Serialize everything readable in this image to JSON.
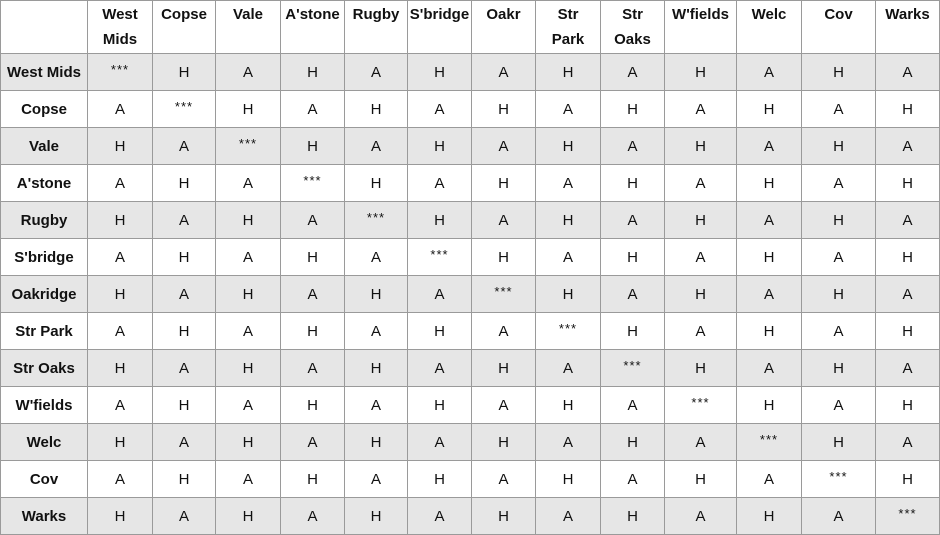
{
  "columns": [
    [
      "West",
      "Mids"
    ],
    [
      "Copse"
    ],
    [
      "Vale"
    ],
    [
      "A'stone"
    ],
    [
      "Rugby"
    ],
    [
      "S'bridge"
    ],
    [
      "Oakr"
    ],
    [
      "Str",
      "Park"
    ],
    [
      "Str",
      "Oaks"
    ],
    [
      "W'fields"
    ],
    [
      "Welc"
    ],
    [
      "Cov"
    ],
    [
      "Warks"
    ]
  ],
  "rows": [
    {
      "team": "West Mids",
      "cells": [
        "***",
        "H",
        "A",
        "H",
        "A",
        "H",
        "A",
        "H",
        "A",
        "H",
        "A",
        "H",
        "A"
      ]
    },
    {
      "team": "Copse",
      "cells": [
        "A",
        "***",
        "H",
        "A",
        "H",
        "A",
        "H",
        "A",
        "H",
        "A",
        "H",
        "A",
        "H"
      ]
    },
    {
      "team": "Vale",
      "cells": [
        "H",
        "A",
        "***",
        "H",
        "A",
        "H",
        "A",
        "H",
        "A",
        "H",
        "A",
        "H",
        "A"
      ]
    },
    {
      "team": "A'stone",
      "cells": [
        "A",
        "H",
        "A",
        "***",
        "H",
        "A",
        "H",
        "A",
        "H",
        "A",
        "H",
        "A",
        "H"
      ]
    },
    {
      "team": "Rugby",
      "cells": [
        "H",
        "A",
        "H",
        "A",
        "***",
        "H",
        "A",
        "H",
        "A",
        "H",
        "A",
        "H",
        "A"
      ]
    },
    {
      "team": "S'bridge",
      "cells": [
        "A",
        "H",
        "A",
        "H",
        "A",
        "***",
        "H",
        "A",
        "H",
        "A",
        "H",
        "A",
        "H"
      ]
    },
    {
      "team": "Oakridge",
      "cells": [
        "H",
        "A",
        "H",
        "A",
        "H",
        "A",
        "***",
        "H",
        "A",
        "H",
        "A",
        "H",
        "A"
      ]
    },
    {
      "team": "Str Park",
      "cells": [
        "A",
        "H",
        "A",
        "H",
        "A",
        "H",
        "A",
        "***",
        "H",
        "A",
        "H",
        "A",
        "H"
      ]
    },
    {
      "team": "Str Oaks",
      "cells": [
        "H",
        "A",
        "H",
        "A",
        "H",
        "A",
        "H",
        "A",
        "***",
        "H",
        "A",
        "H",
        "A"
      ]
    },
    {
      "team": "W'fields",
      "cells": [
        "A",
        "H",
        "A",
        "H",
        "A",
        "H",
        "A",
        "H",
        "A",
        "***",
        "H",
        "A",
        "H"
      ]
    },
    {
      "team": "Welc",
      "cells": [
        "H",
        "A",
        "H",
        "A",
        "H",
        "A",
        "H",
        "A",
        "H",
        "A",
        "***",
        "H",
        "A"
      ]
    },
    {
      "team": "Cov",
      "cells": [
        "A",
        "H",
        "A",
        "H",
        "A",
        "H",
        "A",
        "H",
        "A",
        "H",
        "A",
        "***",
        "H"
      ]
    },
    {
      "team": "Warks",
      "cells": [
        "H",
        "A",
        "H",
        "A",
        "H",
        "A",
        "H",
        "A",
        "H",
        "A",
        "H",
        "A",
        "***"
      ]
    }
  ],
  "colors": {
    "stripe": "#e6e6e6",
    "border": "#9a9a9a"
  }
}
